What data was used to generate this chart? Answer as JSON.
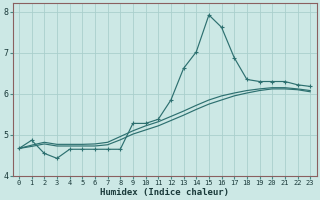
{
  "xlabel": "Humidex (Indice chaleur)",
  "xlim": [
    -0.5,
    23.5
  ],
  "ylim": [
    4,
    8.2
  ],
  "xticks": [
    0,
    1,
    2,
    3,
    4,
    5,
    6,
    7,
    8,
    9,
    10,
    11,
    12,
    13,
    14,
    15,
    16,
    17,
    18,
    19,
    20,
    21,
    22,
    23
  ],
  "yticks": [
    4,
    5,
    6,
    7,
    8
  ],
  "bg_color": "#cce8e5",
  "line_color": "#2d7070",
  "grid_color": "#aacfcc",
  "line1_x": [
    0,
    1,
    2,
    3,
    4,
    5,
    6,
    7,
    8,
    9,
    10,
    11,
    12,
    13,
    14,
    15,
    16,
    17,
    18,
    19,
    20,
    21,
    22,
    23
  ],
  "line1_y": [
    4.67,
    4.87,
    4.55,
    4.43,
    4.65,
    4.65,
    4.65,
    4.65,
    4.65,
    5.28,
    5.28,
    5.38,
    5.85,
    6.62,
    7.02,
    7.92,
    7.62,
    6.88,
    6.35,
    6.3,
    6.3,
    6.3,
    6.22,
    6.18
  ],
  "line2_x": [
    0,
    1,
    2,
    3,
    4,
    5,
    6,
    7,
    8,
    9,
    10,
    11,
    12,
    13,
    14,
    15,
    16,
    17,
    18,
    19,
    20,
    21,
    22,
    23
  ],
  "line2_y": [
    4.67,
    4.72,
    4.78,
    4.73,
    4.73,
    4.73,
    4.73,
    4.76,
    4.88,
    5.02,
    5.12,
    5.22,
    5.35,
    5.48,
    5.62,
    5.75,
    5.85,
    5.95,
    6.02,
    6.08,
    6.12,
    6.12,
    6.1,
    6.05
  ],
  "line3_x": [
    0,
    1,
    2,
    3,
    4,
    5,
    6,
    7,
    8,
    9,
    10,
    11,
    12,
    13,
    14,
    15,
    16,
    17,
    18,
    19,
    20,
    21,
    22,
    23
  ],
  "line3_y": [
    4.67,
    4.75,
    4.82,
    4.77,
    4.77,
    4.77,
    4.78,
    4.82,
    4.96,
    5.1,
    5.22,
    5.32,
    5.45,
    5.58,
    5.72,
    5.85,
    5.95,
    6.02,
    6.08,
    6.12,
    6.15,
    6.15,
    6.12,
    6.08
  ]
}
